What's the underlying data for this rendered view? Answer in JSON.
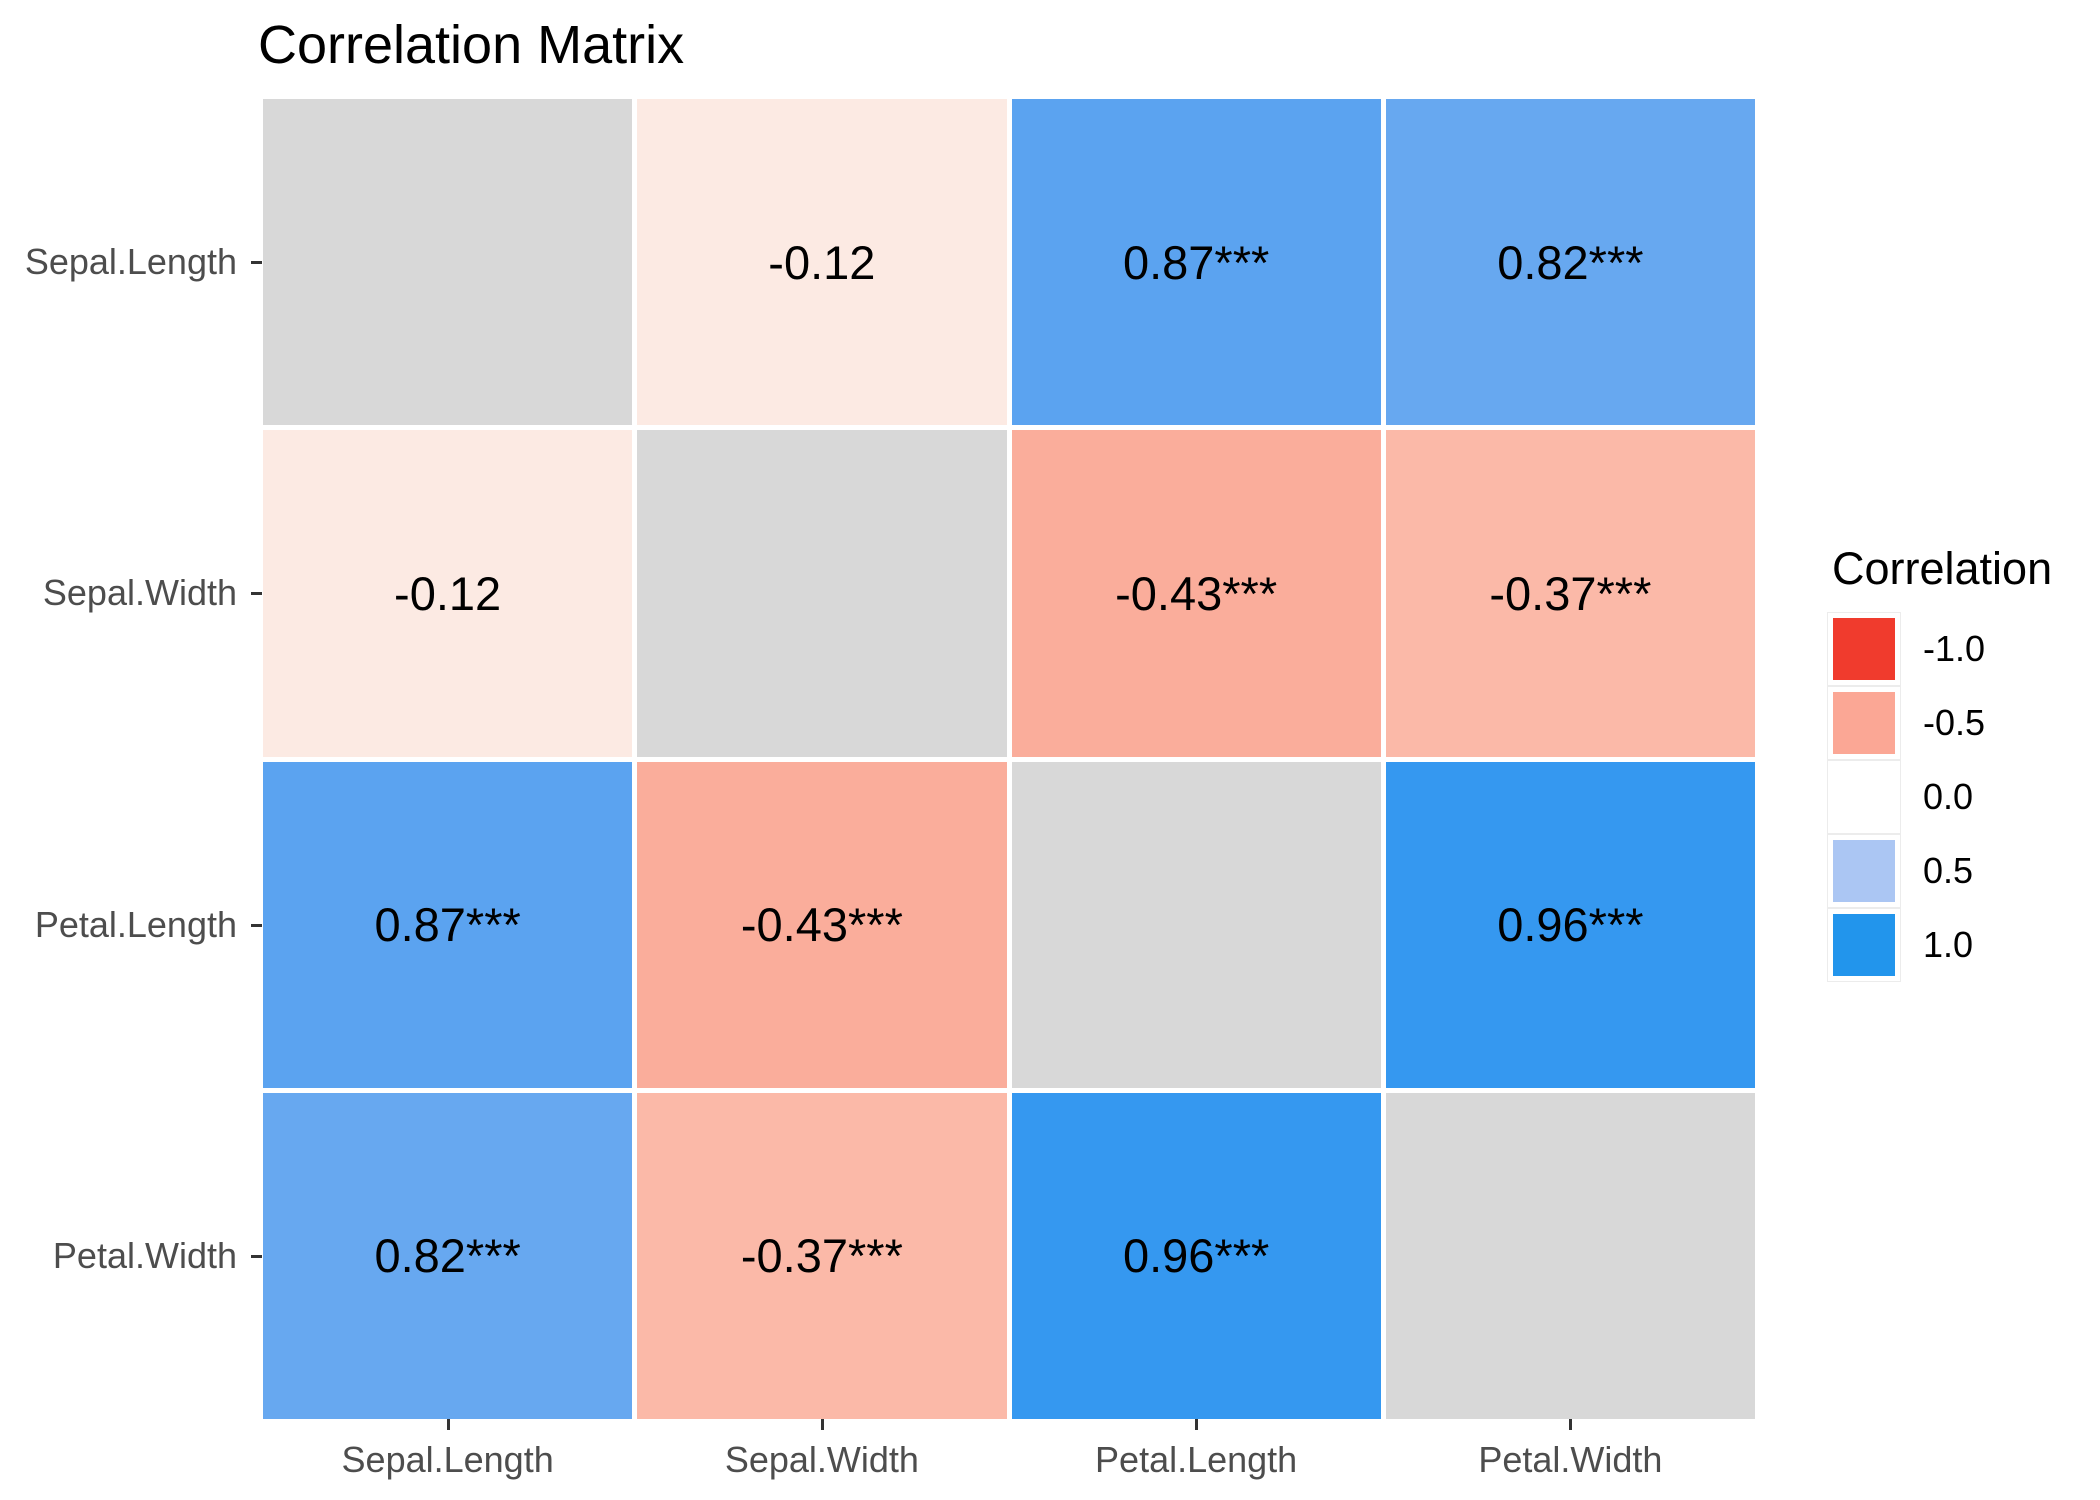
{
  "header": {
    "title": "Correlation Matrix"
  },
  "chart_data": {
    "type": "heatmap",
    "title": "Correlation Matrix",
    "x_categories": [
      "Sepal.Length",
      "Sepal.Width",
      "Petal.Length",
      "Petal.Width"
    ],
    "y_categories": [
      "Sepal.Length",
      "Sepal.Width",
      "Petal.Length",
      "Petal.Width"
    ],
    "rows": [
      {
        "var": "Sepal.Length",
        "cells": [
          {
            "col": "Sepal.Length",
            "value": null,
            "label": "",
            "color": "#D8D8D8"
          },
          {
            "col": "Sepal.Width",
            "value": -0.12,
            "label": "-0.12",
            "color": "#FCEAE3"
          },
          {
            "col": "Petal.Length",
            "value": 0.87,
            "label": "0.87***",
            "color": "#5BA3F0"
          },
          {
            "col": "Petal.Width",
            "value": 0.82,
            "label": "0.82***",
            "color": "#67A8F0"
          }
        ]
      },
      {
        "var": "Sepal.Width",
        "cells": [
          {
            "col": "Sepal.Length",
            "value": -0.12,
            "label": "-0.12",
            "color": "#FCEAE3"
          },
          {
            "col": "Sepal.Width",
            "value": null,
            "label": "",
            "color": "#D8D8D8"
          },
          {
            "col": "Petal.Length",
            "value": -0.43,
            "label": "-0.43***",
            "color": "#FAAD9B"
          },
          {
            "col": "Petal.Width",
            "value": -0.37,
            "label": "-0.37***",
            "color": "#FBB9A8"
          }
        ]
      },
      {
        "var": "Petal.Length",
        "cells": [
          {
            "col": "Sepal.Length",
            "value": 0.87,
            "label": "0.87***",
            "color": "#5BA3F0"
          },
          {
            "col": "Sepal.Width",
            "value": -0.43,
            "label": "-0.43***",
            "color": "#FAAD9B"
          },
          {
            "col": "Petal.Length",
            "value": null,
            "label": "",
            "color": "#D8D8D8"
          },
          {
            "col": "Petal.Width",
            "value": 0.96,
            "label": "0.96***",
            "color": "#3598F0"
          }
        ]
      },
      {
        "var": "Petal.Width",
        "cells": [
          {
            "col": "Sepal.Length",
            "value": 0.82,
            "label": "0.82***",
            "color": "#67A8F0"
          },
          {
            "col": "Sepal.Width",
            "value": -0.37,
            "label": "-0.37***",
            "color": "#FBB9A8"
          },
          {
            "col": "Petal.Length",
            "value": 0.96,
            "label": "0.96***",
            "color": "#3598F0"
          },
          {
            "col": "Petal.Width",
            "value": null,
            "label": "",
            "color": "#D8D8D8"
          }
        ]
      }
    ],
    "legend": {
      "title": "Correlation",
      "entries": [
        {
          "label": "-1.0",
          "color": "#F03B2D"
        },
        {
          "label": "-0.5",
          "color": "#FBA795"
        },
        {
          "label": "0.0",
          "color": "#FFFFFF"
        },
        {
          "label": "0.5",
          "color": "#ABC6F3"
        },
        {
          "label": "1.0",
          "color": "#2295EC"
        }
      ]
    },
    "colorscale": {
      "low": "#F03B2D",
      "mid": "#FFFFFF",
      "high": "#2295EC",
      "na": "#D8D8D8",
      "limits": [
        -1,
        1
      ]
    },
    "layout": {
      "grid": false,
      "legend_position": "right",
      "cell_border": "#FFFFFF"
    }
  }
}
